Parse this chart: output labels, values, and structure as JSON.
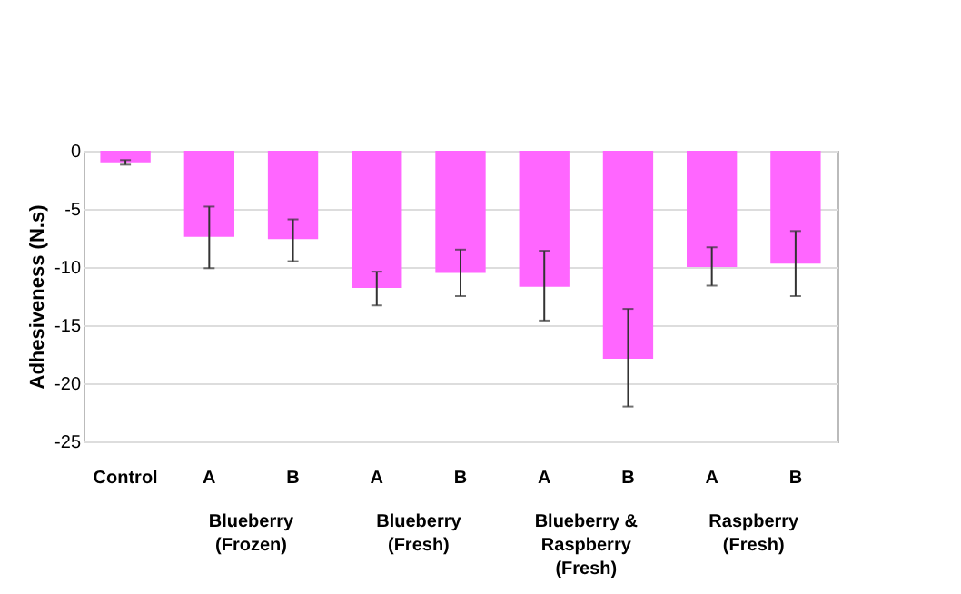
{
  "chart_data": {
    "type": "bar",
    "ylabel": "Adhesiveness (N.s)",
    "categories": [
      "Control",
      "A",
      "B",
      "A",
      "B",
      "A",
      "B",
      "A",
      "B"
    ],
    "values": [
      -1,
      -7.4,
      -7.6,
      -11.8,
      -10.5,
      -11.7,
      -17.9,
      -10,
      -9.7
    ],
    "errors": [
      [
        -1.2,
        -0.8
      ],
      [
        -10.1,
        -4.8
      ],
      [
        -9.5,
        -5.9
      ],
      [
        -13.3,
        -10.4
      ],
      [
        -12.5,
        -8.5
      ],
      [
        -14.6,
        -8.6
      ],
      [
        -22,
        -13.6
      ],
      [
        -11.6,
        -8.3
      ],
      [
        -12.5,
        -6.9
      ]
    ],
    "color": "#ff66ff",
    "ylim": [
      -25,
      0
    ],
    "yticks": [
      0,
      -5,
      -10,
      -15,
      -20,
      -25
    ],
    "grid": "y",
    "annotations": [
      "Blueberry\n(Frozen)",
      "Blueberry\n(Fresh)",
      "Blueberry &\nRaspberry\n(Fresh)",
      "Raspberry\n(Fresh)"
    ]
  }
}
